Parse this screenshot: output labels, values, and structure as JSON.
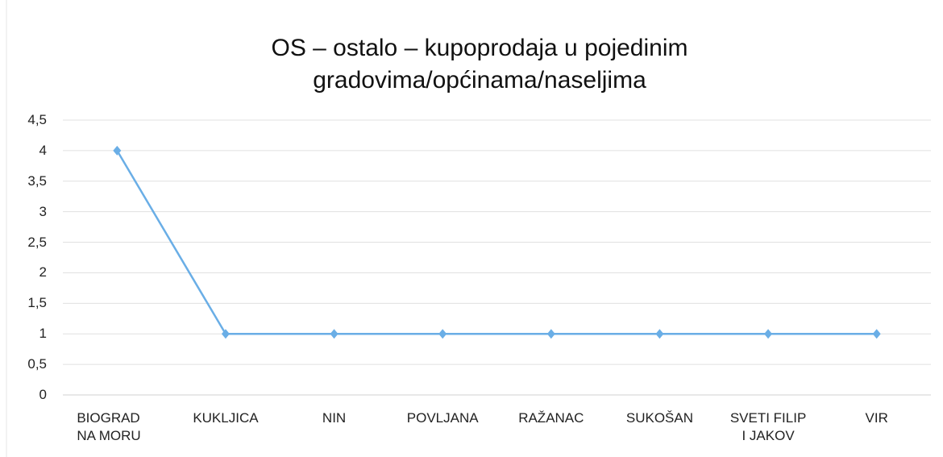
{
  "chart_data": {
    "type": "line",
    "title": "OS – ostalo – kupoprodaja  u  pojedinim\ngradovima/općinama/naseljima",
    "categories": [
      "BIOGRAD\nNA MORU",
      "KUKLJICA",
      "NIN",
      "POVLJANA",
      "RAŽANAC",
      "SUKOŠAN",
      "SVETI FILIP\nI JAKOV",
      "VIR"
    ],
    "values": [
      4,
      1,
      1,
      1,
      1,
      1,
      1,
      1
    ],
    "color": "#6aaee6",
    "ylim": [
      0,
      4.5
    ],
    "yticks": [
      0,
      {
        "value": 0.5,
        "label": "0,5"
      },
      1,
      {
        "value": 1.5,
        "label": "1,5"
      },
      2,
      {
        "value": 2.5,
        "label": "2,5"
      },
      3,
      {
        "value": 3.5,
        "label": "3,5"
      },
      4,
      {
        "value": 4.5,
        "label": "4,5"
      }
    ],
    "grid": true
  }
}
